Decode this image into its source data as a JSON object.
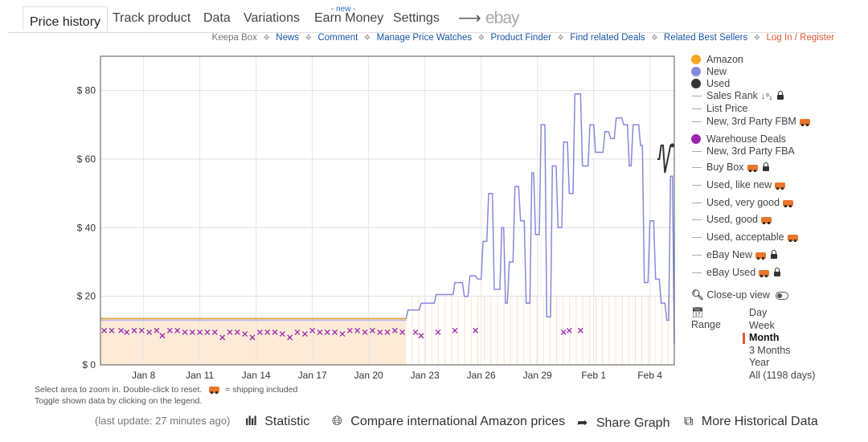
{
  "tabs": [
    {
      "label": "Price history",
      "active": true
    },
    {
      "label": "Track product"
    },
    {
      "label": "Data"
    },
    {
      "label": "Variations"
    },
    {
      "label": "Earn Money",
      "badge": "- new -"
    },
    {
      "label": "Settings"
    }
  ],
  "ebay_logo": "ebay",
  "sublinks": {
    "keepa_box": "Keepa Box",
    "items": [
      "News",
      "Comment",
      "Manage Price Watches",
      "Product Finder",
      "Find related Deals",
      "Related Best Sellers"
    ],
    "login": "Log In / Register"
  },
  "legend": [
    {
      "label": "Amazon",
      "kind": "dot",
      "color": "#f5a623"
    },
    {
      "label": "New",
      "kind": "dot",
      "color": "#8888dd"
    },
    {
      "label": "Used",
      "kind": "dot",
      "color": "#333333"
    },
    {
      "label": "Sales Rank",
      "kind": "line",
      "extra": "sort-lock"
    },
    {
      "label": "List Price",
      "kind": "line"
    },
    {
      "label": "New, 3rd Party FBM",
      "kind": "line",
      "extra": "truck"
    },
    {
      "label": "Warehouse Deals",
      "kind": "dot",
      "color": "#9a27b0"
    },
    {
      "label": "New, 3rd Party FBA",
      "kind": "line"
    },
    {
      "label": "Buy Box",
      "kind": "line",
      "extra": "truck-lock"
    },
    {
      "label": "Used, like new",
      "kind": "line",
      "extra": "truck"
    },
    {
      "label": "Used, very good",
      "kind": "line",
      "extra": "truck"
    },
    {
      "label": "Used, good",
      "kind": "line",
      "extra": "truck"
    },
    {
      "label": "Used, acceptable",
      "kind": "line",
      "extra": "truck"
    },
    {
      "label": "eBay New",
      "kind": "line",
      "extra": "truck-lock"
    },
    {
      "label": "eBay Used",
      "kind": "line",
      "extra": "truck-lock"
    }
  ],
  "closeup": {
    "label": "Close-up view"
  },
  "range": {
    "label": "Range",
    "options": [
      "Day",
      "Week",
      "Month",
      "3 Months",
      "Year",
      "All (1198 days)"
    ],
    "selected": "Month"
  },
  "hints": {
    "line1": "Select area to zoom in. Double-click to reset.",
    "shipping": "= shipping included",
    "line2": "Toggle shown data by clicking on the legend."
  },
  "footer": {
    "last_update": "(last update: 27 minutes ago)",
    "statistic": "Statistic",
    "compare": "Compare international Amazon prices",
    "share": "Share Graph",
    "more": "More Historical Data"
  },
  "chart_data": {
    "type": "line",
    "ylabel": "",
    "ylim": [
      0,
      90
    ],
    "yticks": [
      0,
      20,
      40,
      60,
      80
    ],
    "ytick_labels": [
      "$ 0",
      "$ 20",
      "$ 40",
      "$ 60",
      "$ 80"
    ],
    "xlim": [
      5.7,
      36.3
    ],
    "xticks": [
      8,
      11,
      14,
      17,
      20,
      23,
      26,
      29,
      32,
      35
    ],
    "xtick_labels": [
      "Jan 8",
      "Jan 11",
      "Jan 14",
      "Jan 17",
      "Jan 20",
      "Jan 23",
      "Jan 26",
      "Jan 29",
      "Feb 1",
      "Feb 4"
    ],
    "grid": true,
    "series": [
      {
        "name": "New",
        "color": "#8888dd",
        "x": [
          5.7,
          22.0,
          22.1,
          22.7,
          22.8,
          23.5,
          23.6,
          24.5,
          24.6,
          25.0,
          25.1,
          25.3,
          25.4,
          25.7,
          25.8,
          26.0,
          26.1,
          26.3,
          26.4,
          26.6,
          26.7,
          27.0,
          27.1,
          27.2,
          27.3,
          27.4,
          27.5,
          27.7,
          27.8,
          28.0,
          28.1,
          28.3,
          28.4,
          28.6,
          28.7,
          28.8,
          28.9,
          29.1,
          29.2,
          29.4,
          29.5,
          29.7,
          29.8,
          30.0,
          30.1,
          30.3,
          30.4,
          30.6,
          30.7,
          30.9,
          31.0,
          31.3,
          31.4,
          31.7,
          31.8,
          32.0,
          32.1,
          32.5,
          32.6,
          32.8,
          32.9,
          33.1,
          33.2,
          33.5,
          33.6,
          33.8,
          33.9,
          34.0,
          34.1,
          34.4,
          34.5,
          34.6,
          34.7,
          34.9,
          35.0,
          35.2,
          35.3,
          35.5,
          35.6,
          35.8,
          35.9,
          36.0,
          36.1,
          36.2,
          36.3
        ],
        "y": [
          13.5,
          13.5,
          16,
          16,
          18,
          18,
          20.5,
          20.5,
          24,
          24,
          20,
          20,
          26,
          26,
          25,
          25,
          36,
          36,
          50,
          50,
          22,
          22,
          40,
          40,
          18,
          18,
          30,
          30,
          52,
          52,
          42,
          42,
          18,
          18,
          56,
          56,
          38,
          38,
          70,
          70,
          14,
          14,
          58,
          58,
          40,
          40,
          65,
          65,
          50,
          50,
          79,
          79,
          58,
          58,
          70,
          70,
          62,
          62,
          68,
          68,
          66,
          66,
          72,
          72,
          70,
          70,
          58,
          58,
          70,
          70,
          64,
          64,
          24,
          24,
          42,
          42,
          25,
          25,
          18,
          18,
          13,
          13,
          55,
          55,
          6
        ]
      },
      {
        "name": "Used",
        "color": "#333333",
        "x": [
          35.4,
          35.5,
          35.6,
          35.7,
          35.8,
          36.1,
          36.2
        ],
        "y": [
          60,
          60,
          64,
          64,
          56,
          64,
          64
        ]
      },
      {
        "name": "Amazon",
        "color": "#f5a623",
        "x": [
          5.7,
          22.0
        ],
        "y": [
          13.5,
          13.5
        ]
      },
      {
        "name": "Warehouse Deals",
        "color": "#9a27b0",
        "x": [
          5.9,
          6.3,
          6.8,
          7.1,
          7.5,
          7.9,
          8.3,
          8.7,
          9.0,
          9.4,
          9.8,
          10.2,
          10.6,
          11.0,
          11.4,
          11.8,
          12.2,
          12.6,
          13.0,
          13.4,
          13.8,
          14.2,
          14.6,
          15.0,
          15.4,
          15.8,
          16.2,
          16.6,
          17.0,
          17.4,
          17.8,
          18.2,
          18.6,
          19.0,
          19.4,
          19.8,
          20.2,
          20.6,
          21.0,
          21.4,
          21.8,
          22.5,
          22.8,
          23.7,
          24.6,
          25.7,
          30.4,
          30.7,
          31.3
        ],
        "y": [
          10,
          10,
          10,
          9.5,
          10,
          10,
          9.5,
          10,
          8.5,
          10,
          10,
          9.5,
          9.5,
          9.5,
          9.5,
          9.5,
          8,
          9.5,
          9.5,
          9,
          8,
          9.5,
          9.5,
          9.5,
          9,
          8,
          9.5,
          9,
          10,
          9.5,
          9.5,
          9.5,
          9,
          10,
          10,
          9.5,
          10,
          9.5,
          9.5,
          10,
          9.5,
          9.5,
          8.5,
          9.5,
          10,
          10,
          9.5,
          10,
          10
        ]
      },
      {
        "name": "New, 3rd Party FBA",
        "color": "#b8b8ee",
        "x": [
          5.7,
          22.0
        ],
        "y": [
          13,
          13
        ]
      }
    ]
  }
}
